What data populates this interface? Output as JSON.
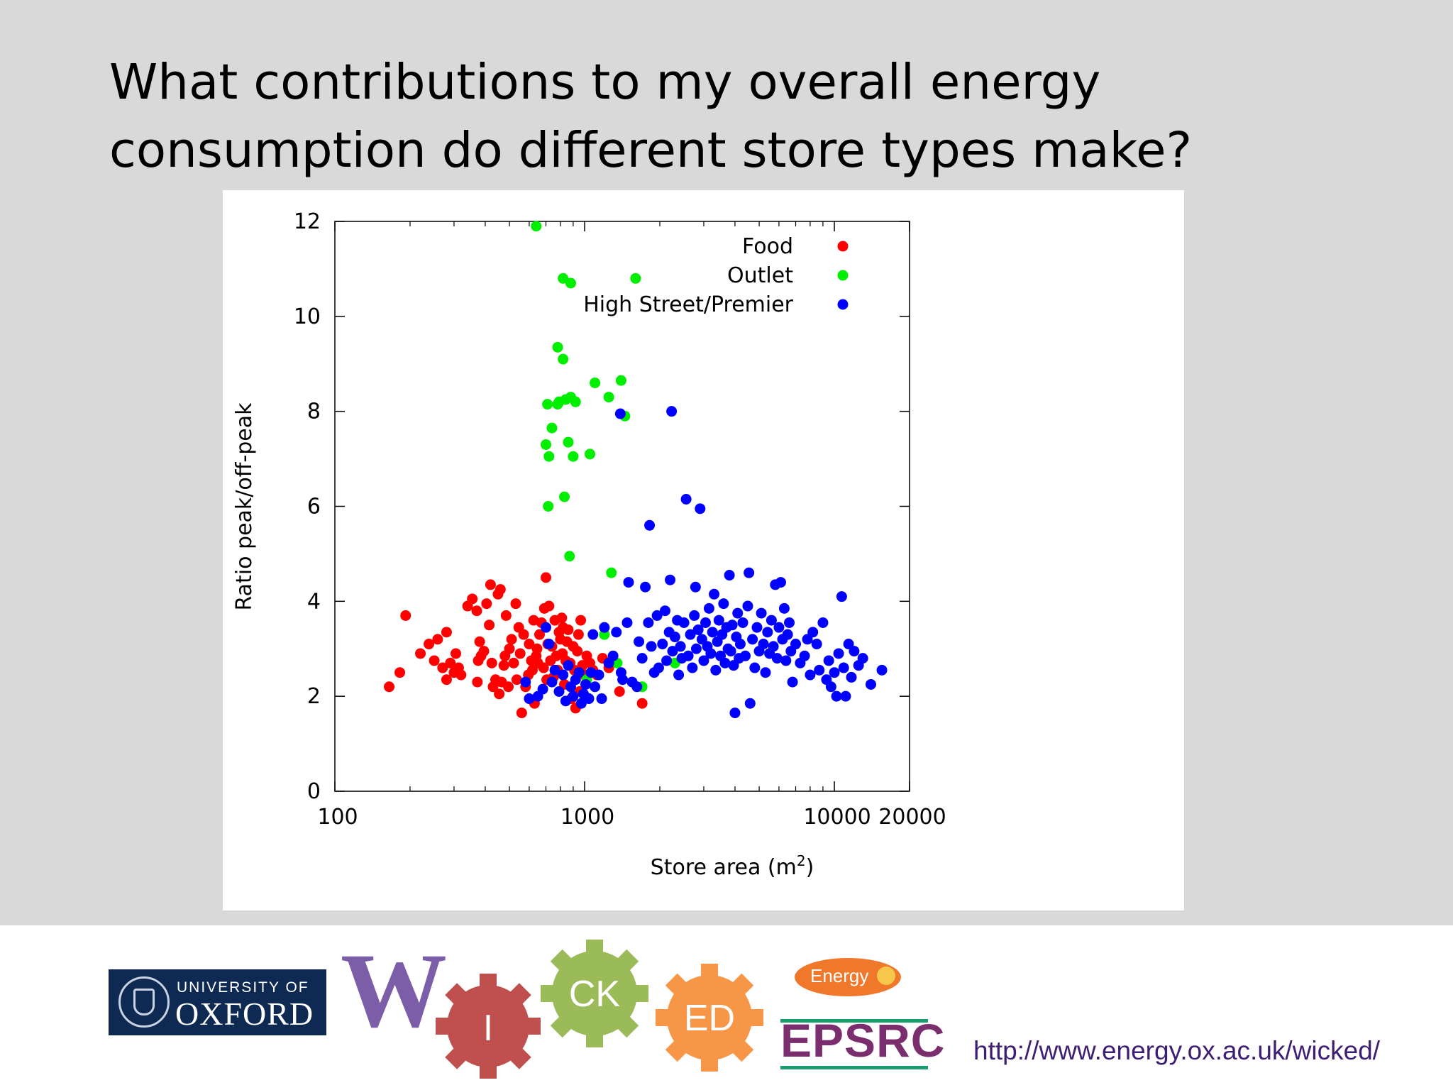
{
  "slide": {
    "title": "What contributions to my overall energy consumption do different store types make?",
    "url": "http://www.energy.ox.ac.uk/wicked/"
  },
  "logos": {
    "oxford_line1": "UNIVERSITY OF",
    "oxford_line2": "OXFORD",
    "wicked_w": "W",
    "wicked_i": "I",
    "wicked_ck": "CK",
    "wicked_ed": "ED",
    "epsrc": "EPSRC",
    "energy_badge": "Energy"
  },
  "colors": {
    "food": "#ff0000",
    "outlet": "#00ee00",
    "high_street": "#0000ff",
    "wicked_purple": "#7b5ea7",
    "wicked_red": "#c0504d",
    "wicked_green": "#9bbb59",
    "wicked_orange": "#f79646"
  },
  "chart_data": {
    "type": "scatter",
    "xlabel": "Store area (m",
    "xlabel_sup": "2",
    "xlabel_close": ")",
    "ylabel": "Ratio peak/off-peak",
    "xscale": "log",
    "xlim": [
      100,
      20000
    ],
    "ylim": [
      0,
      12
    ],
    "xticks": [
      100,
      1000,
      10000,
      20000
    ],
    "xtick_labels": [
      "100",
      "1000",
      "10000",
      "20000"
    ],
    "yticks": [
      0,
      2,
      4,
      6,
      8,
      10,
      12
    ],
    "ytick_labels": [
      "0",
      "2",
      "4",
      "6",
      "8",
      "10",
      "12"
    ],
    "legend_position": "top-right",
    "grid": false,
    "series": [
      {
        "name": "Food",
        "color": "#ff0000",
        "points": [
          [
            165,
            2.2
          ],
          [
            182,
            2.5
          ],
          [
            192,
            3.7
          ],
          [
            220,
            2.9
          ],
          [
            238,
            3.1
          ],
          [
            250,
            2.75
          ],
          [
            258,
            3.2
          ],
          [
            270,
            2.6
          ],
          [
            280,
            3.35
          ],
          [
            280,
            2.35
          ],
          [
            290,
            2.7
          ],
          [
            300,
            2.5
          ],
          [
            305,
            2.9
          ],
          [
            313,
            2.6
          ],
          [
            320,
            2.45
          ],
          [
            340,
            3.9
          ],
          [
            355,
            4.05
          ],
          [
            370,
            3.8
          ],
          [
            372,
            2.3
          ],
          [
            375,
            2.75
          ],
          [
            380,
            3.15
          ],
          [
            385,
            2.85
          ],
          [
            395,
            2.95
          ],
          [
            405,
            3.95
          ],
          [
            415,
            3.5
          ],
          [
            420,
            4.35
          ],
          [
            425,
            2.7
          ],
          [
            430,
            2.2
          ],
          [
            440,
            2.35
          ],
          [
            450,
            4.15
          ],
          [
            455,
            2.05
          ],
          [
            460,
            4.25
          ],
          [
            465,
            2.3
          ],
          [
            475,
            2.65
          ],
          [
            480,
            2.85
          ],
          [
            485,
            3.7
          ],
          [
            495,
            2.2
          ],
          [
            500,
            3.0
          ],
          [
            510,
            3.2
          ],
          [
            520,
            2.7
          ],
          [
            530,
            3.95
          ],
          [
            535,
            2.35
          ],
          [
            545,
            3.45
          ],
          [
            552,
            2.9
          ],
          [
            560,
            1.65
          ],
          [
            570,
            3.3
          ],
          [
            580,
            2.2
          ],
          [
            595,
            2.45
          ],
          [
            600,
            3.1
          ],
          [
            612,
            2.75
          ],
          [
            618,
            2.55
          ],
          [
            625,
            3.6
          ],
          [
            630,
            1.85
          ],
          [
            640,
            2.85
          ],
          [
            645,
            3.0
          ],
          [
            650,
            2.7
          ],
          [
            660,
            3.3
          ],
          [
            672,
            3.55
          ],
          [
            685,
            2.6
          ],
          [
            690,
            3.85
          ],
          [
            700,
            4.5
          ],
          [
            705,
            2.35
          ],
          [
            712,
            3.1
          ],
          [
            720,
            3.9
          ],
          [
            730,
            2.75
          ],
          [
            740,
            3.05
          ],
          [
            750,
            2.4
          ],
          [
            760,
            3.6
          ],
          [
            770,
            2.85
          ],
          [
            780,
            2.55
          ],
          [
            790,
            3.35
          ],
          [
            800,
            3.2
          ],
          [
            810,
            3.65
          ],
          [
            815,
            2.9
          ],
          [
            820,
            3.45
          ],
          [
            830,
            2.25
          ],
          [
            840,
            2.75
          ],
          [
            850,
            3.15
          ],
          [
            860,
            3.4
          ],
          [
            875,
            2.7
          ],
          [
            885,
            1.95
          ],
          [
            900,
            3.05
          ],
          [
            910,
            2.55
          ],
          [
            920,
            1.75
          ],
          [
            935,
            2.95
          ],
          [
            945,
            3.3
          ],
          [
            955,
            2.1
          ],
          [
            965,
            3.6
          ],
          [
            980,
            2.65
          ],
          [
            1000,
            2.45
          ],
          [
            1020,
            2.85
          ],
          [
            1050,
            2.7
          ],
          [
            1080,
            2.55
          ],
          [
            1120,
            2.45
          ],
          [
            1180,
            2.8
          ],
          [
            1250,
            2.6
          ],
          [
            1380,
            2.1
          ],
          [
            1700,
            1.85
          ]
        ]
      },
      {
        "name": "Outlet",
        "color": "#00ee00",
        "points": [
          [
            640,
            11.9
          ],
          [
            700,
            7.3
          ],
          [
            710,
            8.15
          ],
          [
            715,
            6.0
          ],
          [
            720,
            7.05
          ],
          [
            740,
            7.65
          ],
          [
            780,
            8.15
          ],
          [
            780,
            9.35
          ],
          [
            790,
            8.2
          ],
          [
            820,
            9.1
          ],
          [
            820,
            10.8
          ],
          [
            830,
            6.2
          ],
          [
            840,
            8.25
          ],
          [
            860,
            7.35
          ],
          [
            880,
            8.3
          ],
          [
            880,
            10.7
          ],
          [
            900,
            7.05
          ],
          [
            920,
            8.2
          ],
          [
            870,
            4.95
          ],
          [
            1020,
            2.35
          ],
          [
            1050,
            7.1
          ],
          [
            1100,
            8.6
          ],
          [
            1200,
            3.3
          ],
          [
            1250,
            8.3
          ],
          [
            1280,
            4.6
          ],
          [
            1350,
            2.7
          ],
          [
            1400,
            8.65
          ],
          [
            1450,
            7.9
          ],
          [
            1600,
            10.8
          ],
          [
            1700,
            2.2
          ],
          [
            2300,
            2.7
          ]
        ]
      },
      {
        "name": "High Street/Premier",
        "color": "#0000ff",
        "points": [
          [
            580,
            2.3
          ],
          [
            600,
            1.95
          ],
          [
            650,
            2.0
          ],
          [
            680,
            2.15
          ],
          [
            700,
            3.45
          ],
          [
            720,
            3.1
          ],
          [
            740,
            2.3
          ],
          [
            760,
            2.55
          ],
          [
            790,
            2.1
          ],
          [
            820,
            2.45
          ],
          [
            840,
            1.9
          ],
          [
            860,
            2.65
          ],
          [
            880,
            2.2
          ],
          [
            900,
            2.0
          ],
          [
            920,
            2.35
          ],
          [
            950,
            2.5
          ],
          [
            970,
            1.85
          ],
          [
            990,
            2.05
          ],
          [
            1010,
            2.25
          ],
          [
            1040,
            1.95
          ],
          [
            1060,
            2.5
          ],
          [
            1080,
            3.3
          ],
          [
            1100,
            2.2
          ],
          [
            1140,
            2.45
          ],
          [
            1170,
            1.95
          ],
          [
            1200,
            3.45
          ],
          [
            1250,
            2.7
          ],
          [
            1300,
            2.85
          ],
          [
            1340,
            3.35
          ],
          [
            1390,
            7.95
          ],
          [
            1400,
            2.5
          ],
          [
            1420,
            2.35
          ],
          [
            1480,
            3.55
          ],
          [
            1500,
            4.4
          ],
          [
            1550,
            2.3
          ],
          [
            1620,
            2.2
          ],
          [
            1650,
            3.15
          ],
          [
            1700,
            2.8
          ],
          [
            1750,
            4.3
          ],
          [
            1800,
            3.55
          ],
          [
            1820,
            5.6
          ],
          [
            1850,
            3.05
          ],
          [
            1900,
            2.5
          ],
          [
            1950,
            3.7
          ],
          [
            1980,
            2.6
          ],
          [
            2050,
            3.1
          ],
          [
            2100,
            3.8
          ],
          [
            2130,
            2.75
          ],
          [
            2180,
            3.35
          ],
          [
            2200,
            4.45
          ],
          [
            2230,
            8.0
          ],
          [
            2250,
            2.95
          ],
          [
            2300,
            3.25
          ],
          [
            2350,
            3.6
          ],
          [
            2380,
            2.45
          ],
          [
            2420,
            3.05
          ],
          [
            2450,
            2.8
          ],
          [
            2500,
            3.55
          ],
          [
            2550,
            6.15
          ],
          [
            2600,
            2.85
          ],
          [
            2650,
            3.3
          ],
          [
            2700,
            2.6
          ],
          [
            2750,
            3.7
          ],
          [
            2780,
            4.3
          ],
          [
            2800,
            3.0
          ],
          [
            2850,
            3.4
          ],
          [
            2900,
            5.95
          ],
          [
            2950,
            3.2
          ],
          [
            3000,
            2.75
          ],
          [
            3050,
            3.55
          ],
          [
            3100,
            3.05
          ],
          [
            3150,
            3.85
          ],
          [
            3200,
            2.9
          ],
          [
            3250,
            3.35
          ],
          [
            3300,
            4.15
          ],
          [
            3350,
            2.55
          ],
          [
            3400,
            3.15
          ],
          [
            3450,
            3.6
          ],
          [
            3500,
            2.85
          ],
          [
            3550,
            3.3
          ],
          [
            3600,
            3.95
          ],
          [
            3650,
            2.7
          ],
          [
            3700,
            3.45
          ],
          [
            3750,
            3.0
          ],
          [
            3800,
            4.55
          ],
          [
            3850,
            2.95
          ],
          [
            3900,
            3.5
          ],
          [
            3950,
            2.65
          ],
          [
            4000,
            1.65
          ],
          [
            4050,
            3.25
          ],
          [
            4100,
            3.75
          ],
          [
            4150,
            2.8
          ],
          [
            4200,
            3.1
          ],
          [
            4300,
            3.55
          ],
          [
            4400,
            2.85
          ],
          [
            4500,
            3.9
          ],
          [
            4550,
            4.6
          ],
          [
            4600,
            1.85
          ],
          [
            4700,
            3.2
          ],
          [
            4800,
            2.6
          ],
          [
            4900,
            3.45
          ],
          [
            5000,
            2.95
          ],
          [
            5100,
            3.75
          ],
          [
            5200,
            3.1
          ],
          [
            5300,
            2.5
          ],
          [
            5400,
            3.35
          ],
          [
            5500,
            2.9
          ],
          [
            5600,
            3.6
          ],
          [
            5700,
            3.05
          ],
          [
            5800,
            4.35
          ],
          [
            5900,
            2.8
          ],
          [
            6000,
            3.45
          ],
          [
            6100,
            4.4
          ],
          [
            6200,
            3.2
          ],
          [
            6300,
            3.85
          ],
          [
            6400,
            2.75
          ],
          [
            6500,
            3.3
          ],
          [
            6600,
            3.55
          ],
          [
            6700,
            2.95
          ],
          [
            6800,
            2.3
          ],
          [
            7000,
            3.1
          ],
          [
            7300,
            2.7
          ],
          [
            7600,
            2.85
          ],
          [
            7800,
            3.2
          ],
          [
            8000,
            2.45
          ],
          [
            8200,
            3.35
          ],
          [
            8500,
            3.1
          ],
          [
            8700,
            2.55
          ],
          [
            9000,
            3.55
          ],
          [
            9300,
            2.35
          ],
          [
            9500,
            2.75
          ],
          [
            9700,
            2.2
          ],
          [
            10000,
            2.5
          ],
          [
            10200,
            2.0
          ],
          [
            10400,
            2.9
          ],
          [
            10700,
            4.1
          ],
          [
            10900,
            2.6
          ],
          [
            11100,
            2.0
          ],
          [
            11400,
            3.1
          ],
          [
            11700,
            2.4
          ],
          [
            12000,
            2.95
          ],
          [
            12500,
            2.65
          ],
          [
            13000,
            2.8
          ],
          [
            14000,
            2.25
          ],
          [
            15500,
            2.55
          ]
        ]
      }
    ]
  }
}
